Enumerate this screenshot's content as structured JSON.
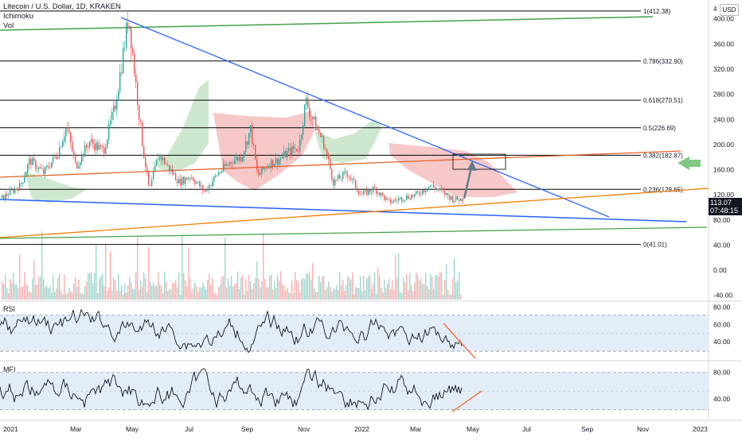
{
  "header": {
    "title": "Litecoin / U.S. Dollar, 1D, KRAKEN",
    "indicator_1": "Ichimoku",
    "indicator_2": "Vol"
  },
  "scale_button": "USD",
  "top_axis_fragment": "4",
  "price_tag": {
    "price": "113.07",
    "countdown": "07:48:15"
  },
  "chart_data": [
    {
      "type": "line",
      "name": "price",
      "x_ticks": [
        "2021",
        "Mar",
        "May",
        "Jul",
        "Sep",
        "Nov",
        "2022",
        "Mar",
        "May",
        "Jul",
        "Sep",
        "Nov",
        "2023"
      ],
      "y_ticks": [
        "400.00",
        "360.00",
        "320.00",
        "280.00",
        "240.00",
        "200.00",
        "160.00",
        "120.00",
        "80.00",
        "40.00",
        "0.00",
        "-40.00"
      ],
      "ylim": [
        -48,
        430
      ],
      "series_path_keypoints": [
        {
          "t": 0,
          "v": 115
        },
        {
          "t": 0.04,
          "v": 135
        },
        {
          "t": 0.06,
          "v": 175
        },
        {
          "t": 0.09,
          "v": 155
        },
        {
          "t": 0.12,
          "v": 185
        },
        {
          "t": 0.14,
          "v": 230
        },
        {
          "t": 0.16,
          "v": 165
        },
        {
          "t": 0.19,
          "v": 205
        },
        {
          "t": 0.22,
          "v": 190
        },
        {
          "t": 0.245,
          "v": 260
        },
        {
          "t": 0.26,
          "v": 330
        },
        {
          "t": 0.275,
          "v": 405
        },
        {
          "t": 0.29,
          "v": 300
        },
        {
          "t": 0.305,
          "v": 200
        },
        {
          "t": 0.32,
          "v": 125
        },
        {
          "t": 0.34,
          "v": 185
        },
        {
          "t": 0.36,
          "v": 165
        },
        {
          "t": 0.385,
          "v": 140
        },
        {
          "t": 0.41,
          "v": 150
        },
        {
          "t": 0.44,
          "v": 125
        },
        {
          "t": 0.47,
          "v": 155
        },
        {
          "t": 0.5,
          "v": 175
        },
        {
          "t": 0.52,
          "v": 180
        },
        {
          "t": 0.54,
          "v": 225
        },
        {
          "t": 0.555,
          "v": 150
        },
        {
          "t": 0.58,
          "v": 170
        },
        {
          "t": 0.6,
          "v": 175
        },
        {
          "t": 0.625,
          "v": 190
        },
        {
          "t": 0.645,
          "v": 195
        },
        {
          "t": 0.66,
          "v": 270
        },
        {
          "t": 0.675,
          "v": 240
        },
        {
          "t": 0.7,
          "v": 200
        },
        {
          "t": 0.72,
          "v": 140
        },
        {
          "t": 0.75,
          "v": 155
        },
        {
          "t": 0.78,
          "v": 120
        },
        {
          "t": 0.81,
          "v": 130
        },
        {
          "t": 0.84,
          "v": 108
        },
        {
          "t": 0.87,
          "v": 115
        },
        {
          "t": 0.9,
          "v": 120
        },
        {
          "t": 0.93,
          "v": 135
        },
        {
          "t": 0.955,
          "v": 125
        },
        {
          "t": 0.98,
          "v": 113
        },
        {
          "t": 1,
          "v": 113
        }
      ]
    },
    {
      "type": "line",
      "name": "RSI",
      "y_ticks": [
        "80.00",
        "60.00",
        "40.00"
      ],
      "ylim": [
        20,
        85
      ]
    },
    {
      "type": "line",
      "name": "MFI",
      "y_ticks": [
        "80.00",
        "40.00"
      ],
      "ylim": [
        10,
        95
      ]
    }
  ],
  "fib_levels": [
    {
      "label": "1(412.38)",
      "value": 412.38
    },
    {
      "label": "0.786(332.90)",
      "value": 332.9
    },
    {
      "label": "0.618(270.51)",
      "value": 270.51
    },
    {
      "label": "0.5(226.69)",
      "value": 226.69
    },
    {
      "label": "0.382(182.87)",
      "value": 182.87
    },
    {
      "label": "0.236(128.65)",
      "value": 128.65
    },
    {
      "label": "0(41.01)",
      "value": 41.01
    }
  ],
  "panel_labels": {
    "rsi": "RSI",
    "mfi": "MFI"
  },
  "colors": {
    "price_up": "#26a69a",
    "price_down": "#ef5350",
    "oscillator_line": "#131722",
    "trend_blue": "#2962ff",
    "trend_orange": "#f57c00",
    "trend_green": "#43a047",
    "cloud_green": "#a5d6a7",
    "cloud_red": "#ef9a9a",
    "oscillator_bg": "#e3edf8",
    "arrow_green": "#81c784",
    "annotation_orange": "#f4733b",
    "price_tag": "#131722"
  }
}
